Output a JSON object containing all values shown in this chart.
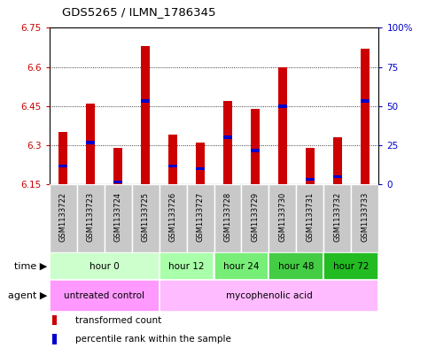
{
  "title": "GDS5265 / ILMN_1786345",
  "samples": [
    "GSM1133722",
    "GSM1133723",
    "GSM1133724",
    "GSM1133725",
    "GSM1133726",
    "GSM1133727",
    "GSM1133728",
    "GSM1133729",
    "GSM1133730",
    "GSM1133731",
    "GSM1133732",
    "GSM1133733"
  ],
  "bar_values": [
    6.35,
    6.46,
    6.29,
    6.68,
    6.34,
    6.31,
    6.47,
    6.44,
    6.6,
    6.29,
    6.33,
    6.67
  ],
  "percentile_values": [
    6.22,
    6.31,
    6.16,
    6.47,
    6.22,
    6.21,
    6.33,
    6.28,
    6.45,
    6.17,
    6.18,
    6.47
  ],
  "ymin": 6.15,
  "ymax": 6.75,
  "yticks": [
    6.15,
    6.3,
    6.45,
    6.6,
    6.75
  ],
  "ytick_labels": [
    "6.15",
    "6.3",
    "6.45",
    "6.6",
    "6.75"
  ],
  "right_yticks": [
    0,
    25,
    50,
    75,
    100
  ],
  "right_ytick_labels": [
    "0",
    "25",
    "50",
    "75",
    "100%"
  ],
  "bar_color": "#cc0000",
  "percentile_color": "#0000cc",
  "left_axis_color": "#cc0000",
  "right_axis_color": "#0000cc",
  "time_groups": [
    {
      "label": "hour 0",
      "start": 0,
      "end": 4,
      "color": "#ccffcc"
    },
    {
      "label": "hour 12",
      "start": 4,
      "end": 6,
      "color": "#aaffaa"
    },
    {
      "label": "hour 24",
      "start": 6,
      "end": 8,
      "color": "#77ee77"
    },
    {
      "label": "hour 48",
      "start": 8,
      "end": 10,
      "color": "#44cc44"
    },
    {
      "label": "hour 72",
      "start": 10,
      "end": 12,
      "color": "#22bb22"
    }
  ],
  "agent_groups": [
    {
      "label": "untreated control",
      "start": 0,
      "end": 4,
      "color": "#ff99ff"
    },
    {
      "label": "mycophenolic acid",
      "start": 4,
      "end": 12,
      "color": "#ffbbff"
    }
  ],
  "legend_bar_label": "transformed count",
  "legend_pct_label": "percentile rank within the sample",
  "time_label": "time",
  "agent_label": "agent",
  "sample_bg_color": "#c8c8c8",
  "bar_width": 0.3
}
